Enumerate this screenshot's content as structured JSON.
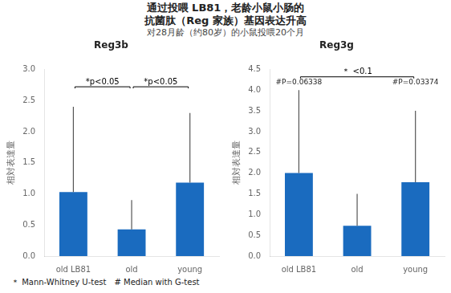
{
  "title": [
    "通过投喂 LB81，老龄小鼠小肠的",
    "抗菌肽（Reg 家族）基因表达升高"
  ],
  "subtitle": "对28月龄（约80岁）的小鼠投喂20个月",
  "footnote": "＊ Mann-Whitney U-test　# Median with G-test",
  "chart_data": [
    {
      "type": "bar",
      "title": "Reg3b",
      "categories": [
        "old LB81",
        "old",
        "young"
      ],
      "values": [
        1.03,
        0.43,
        1.18
      ],
      "error_upper": [
        1.37,
        0.47,
        1.12
      ],
      "color": "#1a6bbf",
      "ylabel": "相対表達量",
      "ylim": [
        0,
        3.0
      ],
      "yticks": [
        {
          "value": 0,
          "label": "0.0"
        },
        0.5,
        {
          "value": 1,
          "label": "1.0"
        },
        1.5,
        {
          "value": 2,
          "label": "2.0"
        },
        2.5,
        {
          "value": 3,
          "label": "3.0"
        }
      ],
      "grid": false,
      "brackets": [
        {
          "from": "old LB81",
          "to": "old",
          "y": 2.72,
          "label": "*p<0.05"
        },
        {
          "from": "old",
          "to": "young",
          "y": 2.72,
          "label": "*p<0.05"
        }
      ]
    },
    {
      "type": "bar",
      "title": "Reg3g",
      "categories": [
        "old LB81",
        "old",
        "young"
      ],
      "values": [
        2.0,
        0.73,
        1.78
      ],
      "error_upper": [
        2.0,
        0.77,
        1.72
      ],
      "color": "#1a6bbf",
      "ylabel": "相対表達量",
      "ylim": [
        0,
        4.5
      ],
      "yticks": [
        {
          "value": 0,
          "label": "0.0"
        },
        0.5,
        {
          "value": 1,
          "label": "1.0"
        },
        1.5,
        {
          "value": 2,
          "label": "2.0"
        },
        2.5,
        {
          "value": 3,
          "label": "3.0"
        },
        3.5,
        {
          "value": 4,
          "label": "4.0"
        },
        4.5
      ],
      "grid": false,
      "brackets": [
        {
          "from": "old LB81",
          "to": "young",
          "y": 4.32,
          "label": "＊ <0.1"
        }
      ],
      "annotations": [
        {
          "x": "old LB81",
          "y": 4.1,
          "label": "#P=0.06338"
        },
        {
          "x": "young",
          "y": 4.1,
          "label": "#P=0.03374"
        }
      ]
    }
  ]
}
